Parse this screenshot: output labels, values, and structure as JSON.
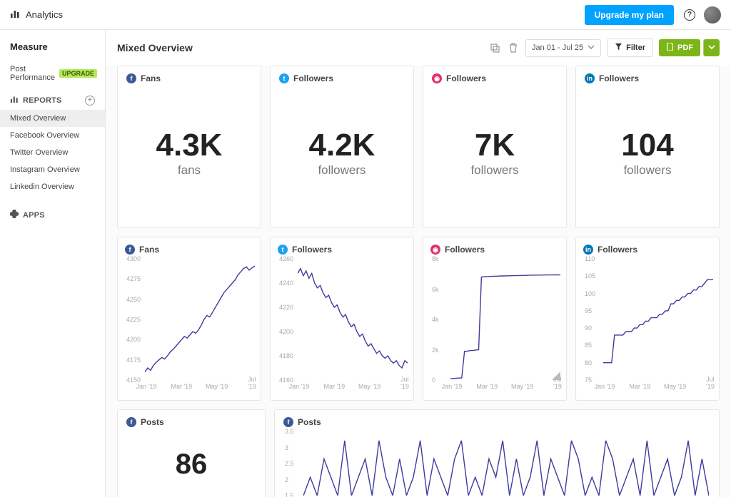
{
  "topbar": {
    "title": "Analytics",
    "upgrade_label": "Upgrade my plan"
  },
  "sidebar": {
    "measure_label": "Measure",
    "post_performance_label": "Post Performance",
    "upgrade_badge": "UPGRADE",
    "reports_label": "REPORTS",
    "apps_label": "APPS",
    "items": [
      {
        "label": "Mixed Overview",
        "active": true
      },
      {
        "label": "Facebook Overview"
      },
      {
        "label": "Twitter Overview"
      },
      {
        "label": "Instagram Overview"
      },
      {
        "label": "Linkedin Overview"
      }
    ]
  },
  "page": {
    "title": "Mixed Overview",
    "date_range": "Jan 01 - Jul 25",
    "filter_label": "Filter",
    "pdf_label": "PDF"
  },
  "stats": [
    {
      "network": "fb",
      "title": "Fans",
      "value": "4.3K",
      "label": "fans"
    },
    {
      "network": "tw",
      "title": "Followers",
      "value": "4.2K",
      "label": "followers"
    },
    {
      "network": "ig",
      "title": "Followers",
      "value": "7K",
      "label": "followers"
    },
    {
      "network": "li",
      "title": "Followers",
      "value": "104",
      "label": "followers"
    }
  ],
  "charts": [
    {
      "network": "fb",
      "title": "Fans",
      "yticks": [
        "4300",
        "4275",
        "4250",
        "4225",
        "4200",
        "4175",
        "4150"
      ],
      "xticks": [
        "Jan '19",
        "Mar '19",
        "May '19",
        "Jul '19"
      ],
      "ylim": [
        4150,
        4300
      ],
      "line_color": "#3d3b9e",
      "points": [
        4160,
        4165,
        4162,
        4168,
        4172,
        4175,
        4178,
        4176,
        4180,
        4185,
        4188,
        4192,
        4196,
        4200,
        4204,
        4202,
        4206,
        4210,
        4208,
        4212,
        4218,
        4225,
        4230,
        4228,
        4234,
        4240,
        4246,
        4252,
        4258,
        4262,
        4266,
        4270,
        4274,
        4280,
        4284,
        4288,
        4290,
        4286,
        4289,
        4291
      ]
    },
    {
      "network": "tw",
      "title": "Followers",
      "yticks": [
        "4260",
        "4240",
        "4220",
        "4200",
        "4180",
        "4160"
      ],
      "xticks": [
        "Jan '19",
        "Mar '19",
        "May '19",
        "Jul '19"
      ],
      "ylim": [
        4160,
        4260
      ],
      "line_color": "#3d3b9e",
      "points": [
        4248,
        4252,
        4246,
        4250,
        4244,
        4248,
        4240,
        4236,
        4238,
        4232,
        4228,
        4230,
        4224,
        4220,
        4222,
        4216,
        4212,
        4214,
        4208,
        4204,
        4206,
        4200,
        4196,
        4198,
        4192,
        4188,
        4190,
        4186,
        4182,
        4184,
        4180,
        4178,
        4180,
        4176,
        4174,
        4176,
        4172,
        4170,
        4176,
        4174
      ]
    },
    {
      "network": "ig",
      "title": "Followers",
      "yticks": [
        "8k",
        "6k",
        "4k",
        "2k",
        "0"
      ],
      "xticks": [
        "Jan '19",
        "Mar '19",
        "May '19",
        "Jul '19"
      ],
      "ylim": [
        0,
        8000
      ],
      "line_color": "#3d3b9e",
      "badge": true,
      "points": [
        100,
        100,
        120,
        130,
        140,
        1900,
        1900,
        1950,
        1950,
        1980,
        2000,
        6800,
        6820,
        6830,
        6840,
        6850,
        6850,
        6860,
        6870,
        6870,
        6880,
        6880,
        6890,
        6890,
        6900,
        6900,
        6910,
        6910,
        6920,
        6920,
        6925,
        6925,
        6930,
        6930,
        6935,
        6935,
        6938,
        6940,
        6942,
        6945
      ]
    },
    {
      "network": "li",
      "title": "Followers",
      "yticks": [
        "110",
        "105",
        "100",
        "95",
        "90",
        "85",
        "80",
        "75"
      ],
      "xticks": [
        "Jan '19",
        "Mar '19",
        "May '19",
        "Jul '19"
      ],
      "ylim": [
        75,
        110
      ],
      "line_color": "#3d3b9e",
      "points": [
        80,
        80,
        80,
        80,
        88,
        88,
        88,
        88,
        89,
        89,
        89,
        90,
        90,
        91,
        91,
        92,
        92,
        93,
        93,
        93,
        94,
        94,
        95,
        95,
        97,
        97,
        98,
        98,
        99,
        99,
        100,
        100,
        101,
        101,
        102,
        102,
        103,
        104,
        104,
        104
      ]
    }
  ],
  "posts_stat": {
    "network": "fb",
    "title": "Posts",
    "value": "86"
  },
  "posts_chart": {
    "network": "fb",
    "title": "Posts",
    "yticks": [
      "3.5",
      "3",
      "2.5",
      "2",
      "1.5"
    ],
    "ylim": [
      0,
      3.5
    ],
    "line_color": "#3d3b9e",
    "points": [
      0,
      1,
      0,
      2,
      1,
      0,
      3,
      0,
      1,
      2,
      0,
      3,
      1,
      0,
      2,
      0,
      1,
      3,
      0,
      2,
      1,
      0,
      2,
      3,
      0,
      1,
      0,
      2,
      1,
      3,
      0,
      2,
      0,
      1,
      3,
      0,
      2,
      1,
      0,
      3,
      2,
      0,
      1,
      0,
      3,
      2,
      0,
      1,
      2,
      0,
      3,
      0,
      1,
      2,
      0,
      1,
      3,
      0,
      2,
      0
    ]
  },
  "colors": {
    "fb": "#3b5998",
    "tw": "#1da1f2",
    "ig": "#e1306c",
    "li": "#0077b5"
  }
}
